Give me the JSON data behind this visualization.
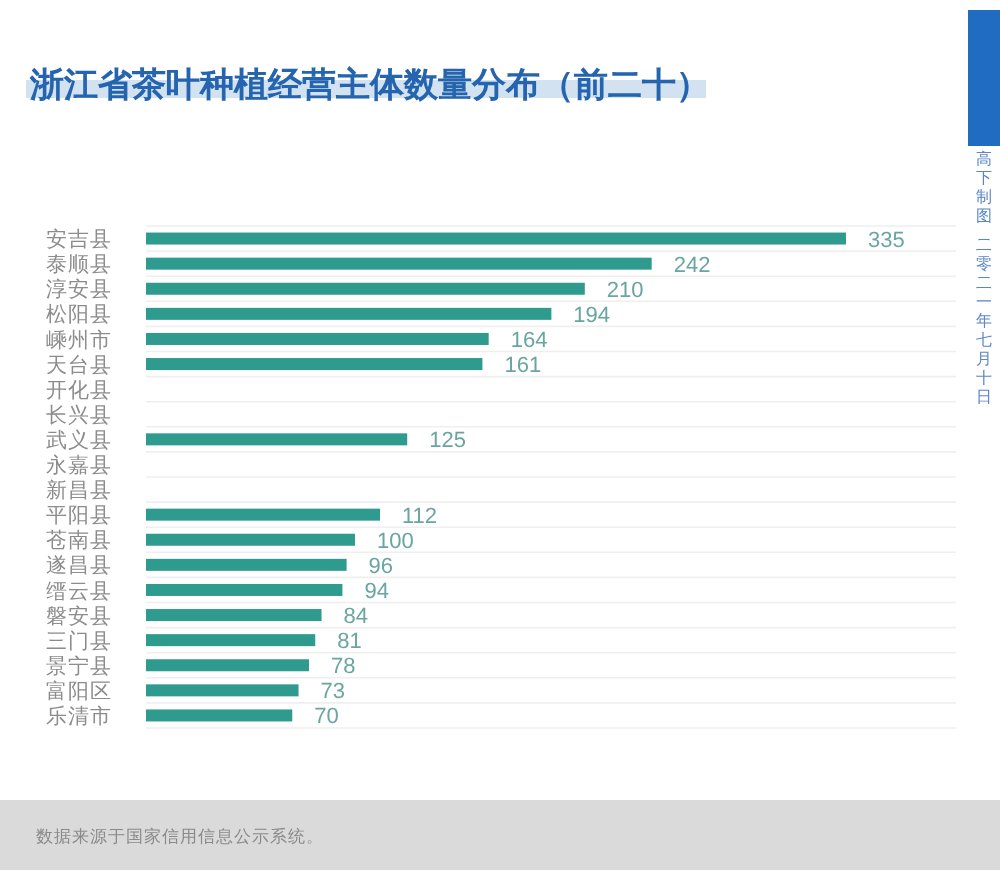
{
  "chart_data": {
    "type": "bar",
    "orientation": "horizontal",
    "title": "浙江省茶叶种植经营主体数量分布（前二十）",
    "categories": [
      "安吉县",
      "泰顺县",
      "淳安县",
      "松阳县",
      "嵊州市",
      "天台县",
      "开化县",
      "长兴县",
      "武义县",
      "永嘉县",
      "新昌县",
      "平阳县",
      "苍南县",
      "遂昌县",
      "缙云县",
      "磐安县",
      "三门县",
      "景宁县",
      "富阳区",
      "乐清市"
    ],
    "values": [
      335,
      242,
      210,
      194,
      164,
      161,
      null,
      null,
      125,
      null,
      null,
      112,
      100,
      96,
      94,
      84,
      81,
      78,
      73,
      70
    ],
    "color": "#2f9a8e",
    "data_labels": true,
    "grid": "y",
    "annotations": [
      "数据来源于国家信用信息公示系统。",
      "高下制图",
      "二零二一年七月十日"
    ]
  }
}
